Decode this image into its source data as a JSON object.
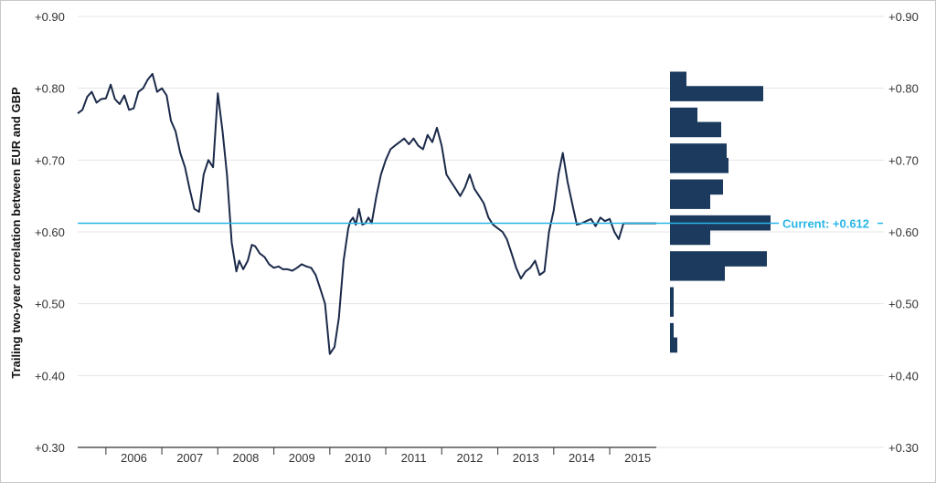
{
  "chart_data": {
    "type": "line",
    "ylabel": "Trailing two-year correlation between EUR and GBP",
    "ylim": [
      0.3,
      0.9
    ],
    "yticks": [
      "+0.90",
      "+0.80",
      "+0.70",
      "+0.60",
      "+0.50",
      "+0.40",
      "+0.30"
    ],
    "ytick_values": [
      0.9,
      0.8,
      0.7,
      0.6,
      0.5,
      0.4,
      0.3
    ],
    "xlim": [
      "2005-07-01",
      "2015-11-01"
    ],
    "x_ticks": [
      "2006",
      "2007",
      "2008",
      "2009",
      "2010",
      "2011",
      "2012",
      "2013",
      "2014",
      "2015"
    ],
    "grid": true,
    "colors": {
      "line": "#1b2a4a",
      "bars": "#1b3a5e",
      "current": "#29b6e6",
      "grid": "#e4e4e4"
    },
    "current": {
      "label": "Current: +0.612",
      "value": 0.612
    },
    "series": [
      {
        "x": [
          "2005-07-01",
          "2005-08-01",
          "2005-09-01",
          "2005-10-01",
          "2005-11-01",
          "2005-12-01",
          "2006-01-01",
          "2006-02-01",
          "2006-03-01",
          "2006-04-01",
          "2006-05-01",
          "2006-06-01",
          "2006-07-01",
          "2006-08-01",
          "2006-09-01",
          "2006-10-01",
          "2006-11-01",
          "2006-12-01",
          "2007-01-01",
          "2007-02-01",
          "2007-03-01",
          "2007-04-01",
          "2007-05-01",
          "2007-06-01",
          "2007-07-01",
          "2007-08-01",
          "2007-09-01",
          "2007-10-01",
          "2007-11-01",
          "2007-12-01",
          "2008-01-01",
          "2008-02-01",
          "2008-03-01",
          "2008-04-01",
          "2008-05-01",
          "2008-05-20",
          "2008-06-15",
          "2008-07-15",
          "2008-08-10",
          "2008-09-01",
          "2008-10-01",
          "2008-11-01",
          "2008-12-01",
          "2009-01-01",
          "2009-02-01",
          "2009-03-01",
          "2009-04-01",
          "2009-05-01",
          "2009-06-01",
          "2009-07-01",
          "2009-08-01",
          "2009-09-01",
          "2009-10-01",
          "2009-11-01",
          "2009-12-01",
          "2010-01-01",
          "2010-02-01",
          "2010-03-01",
          "2010-04-01",
          "2010-05-01",
          "2010-05-15",
          "2010-06-01",
          "2010-06-20",
          "2010-07-10",
          "2010-08-01",
          "2010-08-20",
          "2010-09-10",
          "2010-10-01",
          "2010-11-01",
          "2010-12-01",
          "2011-01-01",
          "2011-02-01",
          "2011-03-01",
          "2011-04-01",
          "2011-05-01",
          "2011-06-01",
          "2011-07-01",
          "2011-08-01",
          "2011-09-01",
          "2011-10-01",
          "2011-11-01",
          "2011-12-01",
          "2012-01-01",
          "2012-02-01",
          "2012-03-01",
          "2012-04-01",
          "2012-05-01",
          "2012-06-01",
          "2012-07-01",
          "2012-08-01",
          "2012-09-01",
          "2012-10-01",
          "2012-11-01",
          "2012-12-01",
          "2013-01-01",
          "2013-02-01",
          "2013-03-01",
          "2013-04-01",
          "2013-05-01",
          "2013-06-01",
          "2013-07-01",
          "2013-08-01",
          "2013-09-01",
          "2013-10-01",
          "2013-11-01",
          "2013-12-01",
          "2014-01-01",
          "2014-02-01",
          "2014-03-01",
          "2014-04-01",
          "2014-05-01",
          "2014-06-01",
          "2014-07-01",
          "2014-08-01",
          "2014-09-01",
          "2014-10-01",
          "2014-11-01",
          "2014-12-01",
          "2015-01-01",
          "2015-02-01",
          "2015-03-01",
          "2015-04-01",
          "2015-05-01",
          "2015-06-01",
          "2015-07-01",
          "2015-08-01",
          "2015-09-01",
          "2015-10-01",
          "2015-11-01"
        ],
        "values": [
          0.765,
          0.77,
          0.788,
          0.795,
          0.78,
          0.785,
          0.786,
          0.805,
          0.785,
          0.778,
          0.79,
          0.77,
          0.772,
          0.795,
          0.8,
          0.812,
          0.82,
          0.795,
          0.8,
          0.79,
          0.755,
          0.74,
          0.71,
          0.69,
          0.66,
          0.632,
          0.628,
          0.68,
          0.7,
          0.69,
          0.793,
          0.74,
          0.68,
          0.585,
          0.545,
          0.56,
          0.548,
          0.56,
          0.582,
          0.58,
          0.57,
          0.565,
          0.555,
          0.55,
          0.552,
          0.548,
          0.548,
          0.546,
          0.55,
          0.555,
          0.552,
          0.55,
          0.54,
          0.52,
          0.5,
          0.43,
          0.44,
          0.48,
          0.56,
          0.605,
          0.615,
          0.62,
          0.61,
          0.632,
          0.61,
          0.612,
          0.62,
          0.612,
          0.65,
          0.68,
          0.7,
          0.715,
          0.72,
          0.725,
          0.73,
          0.722,
          0.73,
          0.72,
          0.715,
          0.735,
          0.725,
          0.745,
          0.72,
          0.68,
          0.67,
          0.66,
          0.65,
          0.662,
          0.68,
          0.66,
          0.65,
          0.64,
          0.62,
          0.61,
          0.605,
          0.6,
          0.59,
          0.57,
          0.55,
          0.535,
          0.545,
          0.55,
          0.56,
          0.54,
          0.545,
          0.6,
          0.63,
          0.68,
          0.71,
          0.67,
          0.64,
          0.61,
          0.612,
          0.615,
          0.618,
          0.608,
          0.62,
          0.615,
          0.618,
          0.6,
          0.59,
          0.612,
          0.612,
          0.612,
          0.612,
          0.612,
          0.612,
          0.612,
          0.612
        ]
      }
    ],
    "histogram": {
      "bins": [
        0.8,
        0.78,
        0.75,
        0.73,
        0.7,
        0.68,
        0.65,
        0.63,
        0.6,
        0.58,
        0.55,
        0.53,
        0.5,
        0.48,
        0.45,
        0.43
      ],
      "counts": [
        9,
        51,
        15,
        28,
        31,
        32,
        29,
        22,
        55,
        22,
        53,
        30,
        2,
        2,
        2,
        4
      ]
    }
  }
}
